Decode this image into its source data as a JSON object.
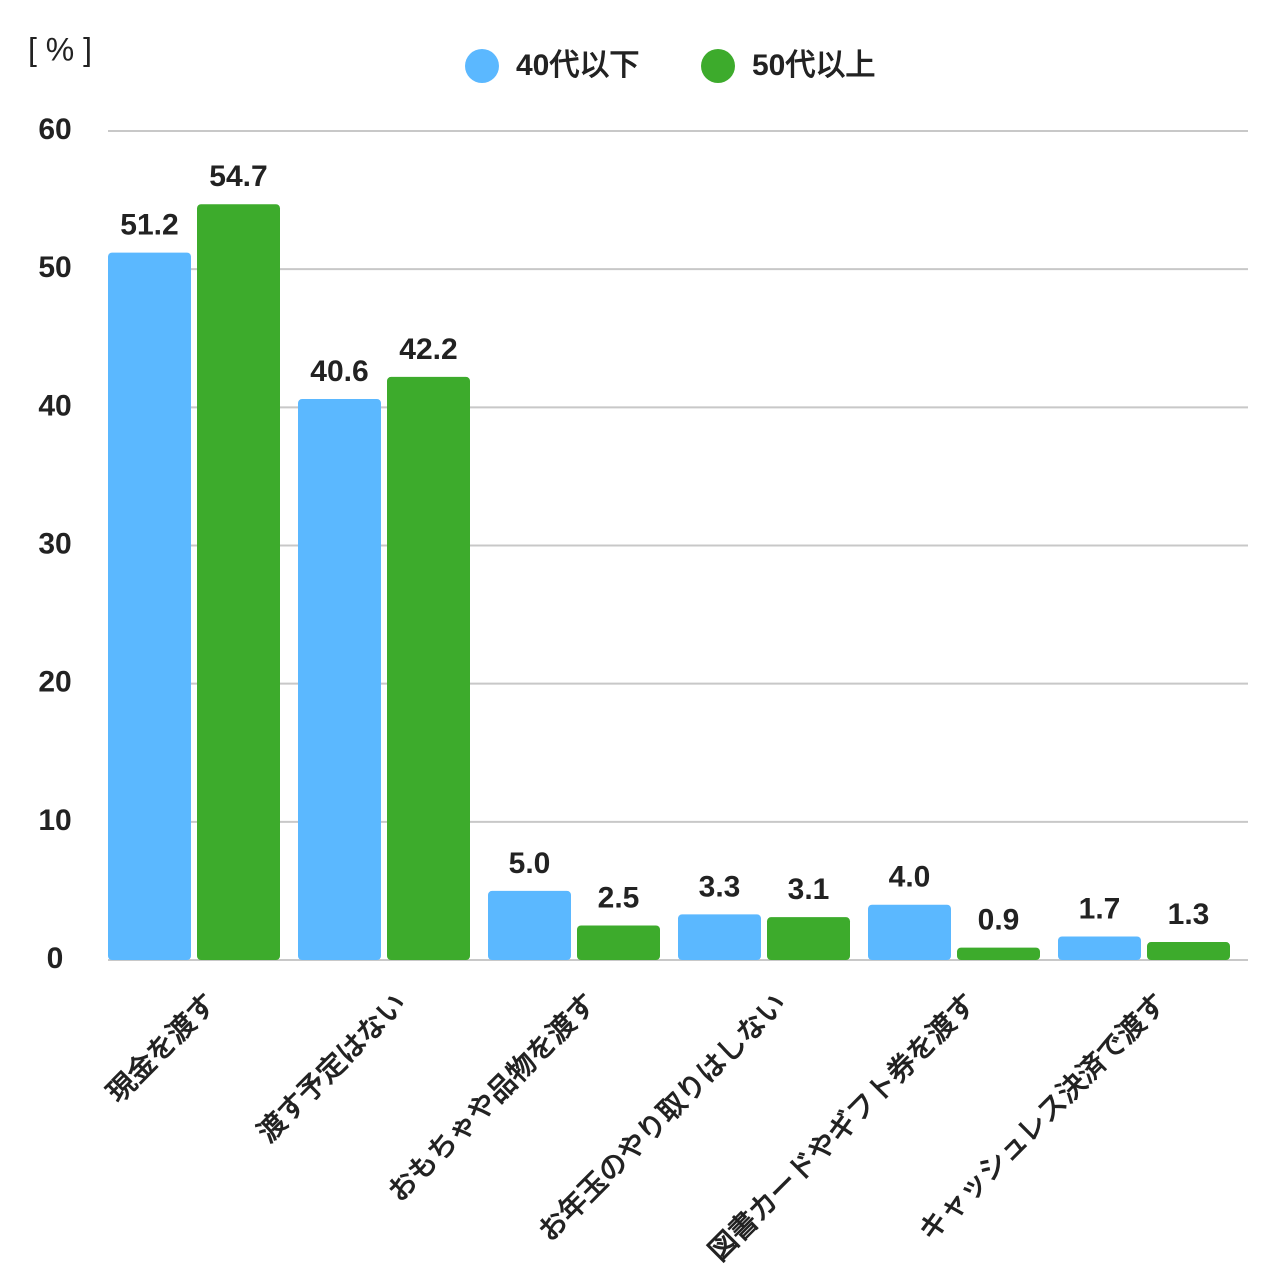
{
  "chart_data": {
    "type": "bar",
    "unit_label": "[ % ]",
    "categories": [
      "現金を渡す",
      "渡す予定はない",
      "おもちゃや品物を渡す",
      "お年玉のやり取りはしない",
      "図書カードやギフト券を渡す",
      "キャッシュレス決済で渡す"
    ],
    "series": [
      {
        "name": "40代以下",
        "color": "#5bb8ff",
        "values": [
          51.2,
          40.6,
          5.0,
          3.3,
          4.0,
          1.7
        ],
        "value_labels": [
          "51.2",
          "40.6",
          "5.0",
          "3.3",
          "4.0",
          "1.7"
        ]
      },
      {
        "name": "50代以上",
        "color": "#3dab2c",
        "values": [
          54.7,
          42.2,
          2.5,
          3.1,
          0.9,
          1.3
        ],
        "value_labels": [
          "54.7",
          "42.2",
          "2.5",
          "3.1",
          "0.9",
          "1.3"
        ]
      }
    ],
    "ylim": [
      0,
      60
    ],
    "yticks": [
      0,
      10,
      20,
      30,
      40,
      50,
      60
    ],
    "grid": true,
    "legend": "top"
  }
}
